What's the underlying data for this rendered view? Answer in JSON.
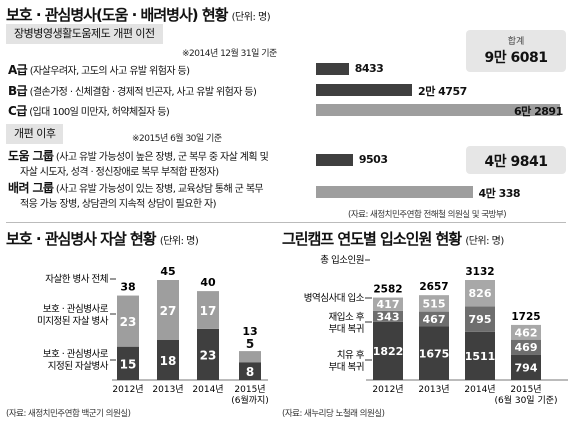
{
  "main": {
    "title": "보호 · 관심병사(도움 · 배려병사) 현황",
    "unit": "(단위: 명)",
    "before": {
      "pill": "장병병영생활도움제도 개편 이전",
      "note": "※2014년 12월 31일 기준",
      "total_label": "합계",
      "total_value": "9만 6081",
      "rows": [
        {
          "grade": "A급",
          "desc": "(자살우려자, 고도의 사고 유발 위험자 등)",
          "value": 8433,
          "label": "8433"
        },
        {
          "grade": "B급",
          "desc": "(결손가정 · 신체결함 · 경제적 빈곤자, 사고 유발 위험자 등)",
          "value": 24757,
          "label": "2만 4757"
        },
        {
          "grade": "C급",
          "desc": "(입대 100일 미만자, 허약체질자 등)",
          "value": 62891,
          "label": "6만 2891"
        }
      ]
    },
    "after": {
      "pill": "개편 이후",
      "note": "※2015년 6월 30일 기준",
      "total_value": "4만 9841",
      "rows": [
        {
          "grade": "도움 그룹",
          "desc1": "(사고 유발 가능성이 높은 장병, 군 복무 중 자살 계획 및",
          "desc2": "자살 시도자, 성격 · 정신장애로 복무 부적합 판정자)",
          "value": 9503,
          "label": "9503"
        },
        {
          "grade": "배려 그룹",
          "desc1": "(사고 유발 가능성이 있는 장병, 교육상담 통해 군 복무",
          "desc2": "적응 가능 장병, 상담관의 지속적 상담이 필요한 자)",
          "value": 40338,
          "label": "4만 338"
        }
      ]
    },
    "source": "(자료: 새정치민주연합 전해철 의원실 및 국방부)"
  },
  "colors": {
    "dark": "#3f3f3f",
    "light": "#9e9e9e",
    "pill": "#e3e3e3",
    "summary_box": "#e6e6e6"
  },
  "left_chart": {
    "title": "보호 · 관심병사 자살 현황",
    "unit": "(단위: 명)",
    "label_total": "자살한 병사 전체",
    "label_unspecified": "보호 · 관심병사로\n미지정된 자살 병사",
    "label_specified": "보호 · 관심병사로\n지정된 자살병사",
    "source": "(자료: 새정치민주연합 백군기 의원실)",
    "chart_data": {
      "type": "bar",
      "stacked": true,
      "categories": [
        "2012년",
        "2013년",
        "2014년",
        "2015년"
      ],
      "category_notes": [
        "",
        "",
        "",
        "(6월까지)"
      ],
      "series": [
        {
          "name": "보호 · 관심병사로 지정된 자살병사",
          "values": [
            15,
            18,
            23,
            8
          ]
        },
        {
          "name": "보호 · 관심병사로 미지정된 자살 병사",
          "values": [
            23,
            27,
            17,
            5
          ]
        }
      ],
      "totals": [
        38,
        45,
        40,
        13
      ]
    }
  },
  "right_chart": {
    "title": "그린캠프 연도별 입소인원 현황",
    "unit": "(단위: 명)",
    "label_total": "총 입소인원",
    "label_hospital": "병역심사대 입소",
    "label_reenter": "재입소 후\n부대 복귀",
    "label_return": "치유 후\n부대 복귀",
    "source": "(자료: 새누리당 노철래 의원실)",
    "chart_data": {
      "type": "bar",
      "stacked": true,
      "categories": [
        "2012년",
        "2013년",
        "2014년",
        "2015년"
      ],
      "category_notes": [
        "",
        "",
        "",
        "(6월 30일 기준)"
      ],
      "series": [
        {
          "name": "치유 후 부대 복귀",
          "values": [
            1822,
            1675,
            1511,
            794
          ]
        },
        {
          "name": "재입소 후 부대 복귀",
          "values": [
            343,
            467,
            795,
            469
          ]
        },
        {
          "name": "병역심사대 입소",
          "values": [
            417,
            515,
            826,
            462
          ]
        }
      ],
      "totals": [
        2582,
        2657,
        3132,
        1725
      ]
    }
  }
}
